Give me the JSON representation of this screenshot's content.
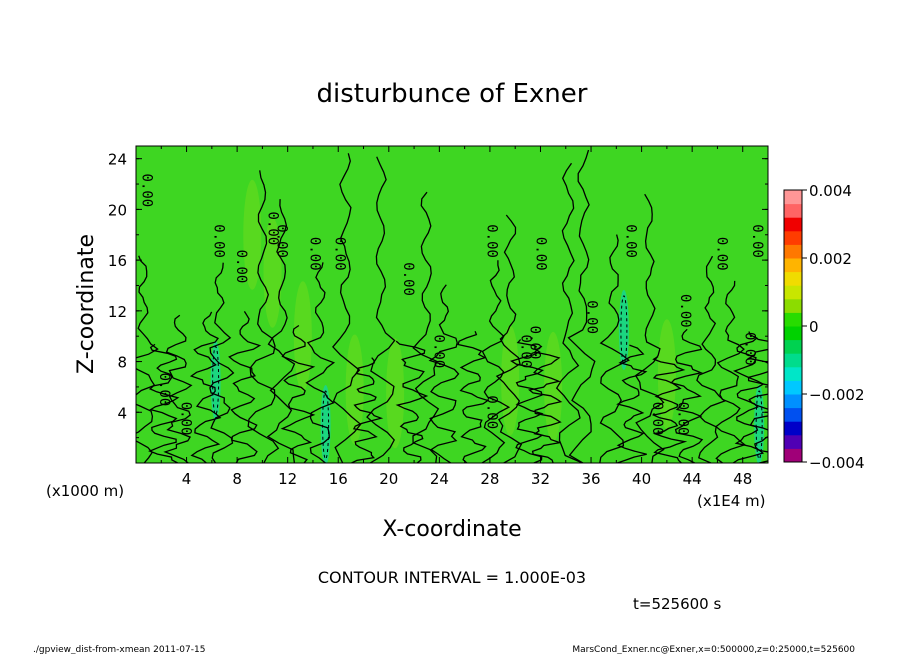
{
  "chart_data": {
    "type": "heatmap",
    "title": "disturbunce of Exner",
    "xlabel": "X-coordinate",
    "ylabel": "Z-coordinate",
    "x_unit_label": "(x1E4 m)",
    "y_unit_label": "(x1000 m)",
    "xlim": [
      0,
      50
    ],
    "ylim": [
      0,
      25
    ],
    "x_ticks": [
      "4",
      "8",
      "12",
      "16",
      "20",
      "24",
      "28",
      "32",
      "36",
      "40",
      "44",
      "48"
    ],
    "y_ticks": [
      "4",
      "8",
      "12",
      "16",
      "20",
      "24"
    ],
    "grid": false,
    "contour_interval_text": "CONTOUR INTERVAL = 1.000E-03",
    "contour_label": "0.00",
    "contour_label_positions": [
      {
        "x": 0.5,
        "z": 21.5
      },
      {
        "x": 6.2,
        "z": 17.5
      },
      {
        "x": 8.0,
        "z": 15.5
      },
      {
        "x": 10.5,
        "z": 18.5
      },
      {
        "x": 11.2,
        "z": 17.5
      },
      {
        "x": 13.8,
        "z": 16.5
      },
      {
        "x": 15.8,
        "z": 16.5
      },
      {
        "x": 21.2,
        "z": 14.5
      },
      {
        "x": 27.8,
        "z": 17.5
      },
      {
        "x": 31.7,
        "z": 16.5
      },
      {
        "x": 38.8,
        "z": 17.5
      },
      {
        "x": 46.0,
        "z": 16.5
      },
      {
        "x": 48.8,
        "z": 17.5
      },
      {
        "x": 35.7,
        "z": 11.5
      },
      {
        "x": 43.1,
        "z": 12.0
      },
      {
        "x": 48.2,
        "z": 9.0
      },
      {
        "x": 23.6,
        "z": 8.8
      },
      {
        "x": 30.5,
        "z": 8.8
      },
      {
        "x": 31.2,
        "z": 9.5
      },
      {
        "x": 1.9,
        "z": 5.8
      },
      {
        "x": 3.6,
        "z": 3.5
      },
      {
        "x": 27.8,
        "z": 4.0
      },
      {
        "x": 40.9,
        "z": 3.5
      },
      {
        "x": 42.9,
        "z": 3.5
      }
    ],
    "colorbar": {
      "range": [
        -0.004,
        0.004
      ],
      "tick_labels": [
        "0.004",
        "0.002",
        "0",
        "−0.002",
        "−0.004"
      ],
      "colors": [
        "#a00078",
        "#5000b4",
        "#0000c8",
        "#0050f0",
        "#0090ff",
        "#00c8ff",
        "#00e6c8",
        "#00dc8c",
        "#00d250",
        "#00d200",
        "#28dc00",
        "#8cdc00",
        "#c8e600",
        "#f0dc00",
        "#ffb400",
        "#ff7800",
        "#ff3c00",
        "#f00000",
        "#ff6464",
        "#ff9696"
      ]
    },
    "field": {
      "background": "#3ed622",
      "high_patches": [
        {
          "x": 9.2,
          "z": 18.0
        },
        {
          "x": 10.8,
          "z": 15.0
        },
        {
          "x": 13.2,
          "z": 10.0
        },
        {
          "x": 17.3,
          "z": 5.8
        },
        {
          "x": 20.5,
          "z": 5.5
        },
        {
          "x": 29.6,
          "z": 6.5
        },
        {
          "x": 33.0,
          "z": 6.0
        },
        {
          "x": 42.0,
          "z": 7.0
        }
      ],
      "low_patches": [
        {
          "x": 6.3,
          "z": 6.5
        },
        {
          "x": 15.0,
          "z": 3.0
        },
        {
          "x": 38.6,
          "z": 10.5
        },
        {
          "x": 49.3,
          "z": 3.0
        }
      ]
    }
  },
  "footer": {
    "time": "t=525600 s",
    "left": "./gpview_dist-from-xmean  2011-07-15",
    "right": "MarsCond_Exner.nc@Exner,x=0:500000,z=0:25000,t=525600"
  }
}
